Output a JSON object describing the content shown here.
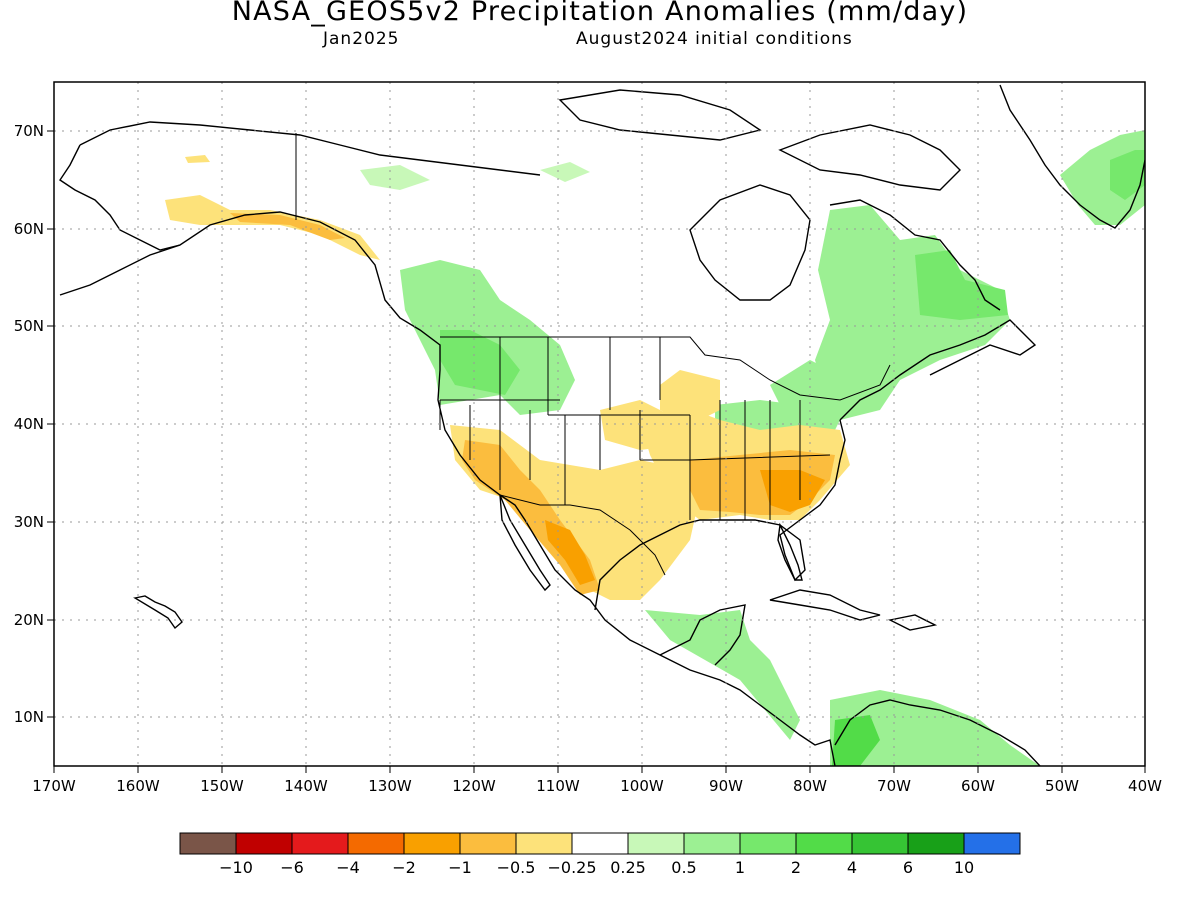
{
  "title": "NASA_GEOS5v2 Precipitation Anomalies (mm/day)",
  "subtitle_left": "Jan2025",
  "subtitle_right": "August2024 initial conditions",
  "lon_labels": [
    "170W",
    "160W",
    "150W",
    "140W",
    "130W",
    "120W",
    "110W",
    "100W",
    "90W",
    "80W",
    "70W",
    "60W",
    "50W",
    "40W"
  ],
  "lat_labels": [
    "70N",
    "60N",
    "50N",
    "40N",
    "30N",
    "20N",
    "10N"
  ],
  "colorbar": {
    "colors": [
      "#7a5548",
      "#c00000",
      "#e41a1c",
      "#f46a00",
      "#f9a000",
      "#fbbd3e",
      "#fde27a",
      "#ffffff",
      "#c8f8b8",
      "#9cf093",
      "#76e86c",
      "#52dc48",
      "#36c434",
      "#18a018",
      "#2470e8"
    ],
    "labels": [
      "−10",
      "−6",
      "−4",
      "−2",
      "−1",
      "−0.5",
      "−0.25",
      "0.25",
      "0.5",
      "1",
      "2",
      "4",
      "6",
      "10"
    ]
  }
}
